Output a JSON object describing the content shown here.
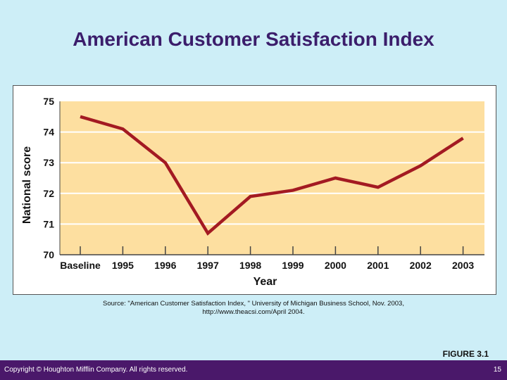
{
  "title": "American Customer Satisfaction Index",
  "chart_data": {
    "type": "line",
    "title": "",
    "xlabel": "Year",
    "ylabel": "National score",
    "categories": [
      "Baseline",
      "1995",
      "1996",
      "1997",
      "1998",
      "1999",
      "2000",
      "2001",
      "2002",
      "2003"
    ],
    "values": [
      74.5,
      74.1,
      73.0,
      70.7,
      71.9,
      72.1,
      72.5,
      72.2,
      72.9,
      73.8
    ],
    "ylim": [
      70,
      75
    ],
    "yticks": [
      70,
      71,
      72,
      73,
      74,
      75
    ],
    "grid": true,
    "colors": {
      "line": "#a31a22",
      "plot_bg": "#fddfa0"
    }
  },
  "source": [
    "Source: \"American Customer Satisfaction Index, \" University of Michigan Business School, Nov. 2003,",
    "http://www.theacsi.com/April 2004."
  ],
  "figure_label": "FIGURE 3.1",
  "footer": {
    "copyright": "Copyright © Houghton Mifflin Company. All rights reserved.",
    "page": "15"
  }
}
